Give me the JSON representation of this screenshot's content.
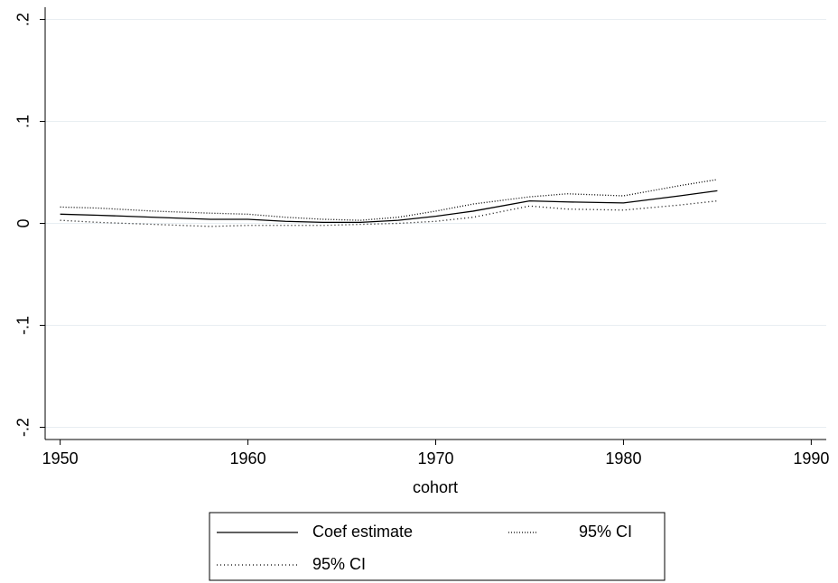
{
  "chart_data": {
    "type": "line",
    "x_label": "cohort",
    "x": [
      1950,
      1952,
      1955,
      1958,
      1960,
      1962,
      1964,
      1966,
      1968,
      1970,
      1972,
      1975,
      1977,
      1980,
      1983,
      1985
    ],
    "series": [
      {
        "name": "Coef estimate",
        "color": "#000000",
        "dash": "none",
        "values": [
          0.009,
          0.008,
          0.006,
          0.004,
          0.004,
          0.002,
          0.001,
          0.001,
          0.003,
          0.007,
          0.012,
          0.022,
          0.021,
          0.02,
          0.027,
          0.032
        ]
      },
      {
        "name": "95% CI",
        "color": "#000000",
        "dash": "1,2",
        "values": [
          0.016,
          0.015,
          0.012,
          0.01,
          0.009,
          0.006,
          0.004,
          0.003,
          0.006,
          0.012,
          0.019,
          0.026,
          0.029,
          0.027,
          0.037,
          0.043
        ]
      },
      {
        "name": "95% CI",
        "color": "#000000",
        "dash": "1,3",
        "values": [
          0.003,
          0.001,
          -0.001,
          -0.003,
          -0.002,
          -0.002,
          -0.002,
          -0.001,
          0.0,
          0.002,
          0.006,
          0.017,
          0.014,
          0.013,
          0.018,
          0.022
        ]
      }
    ],
    "xlim": [
      1949.2,
      1990.8
    ],
    "xticks": [
      1950,
      1960,
      1970,
      1980,
      1990
    ],
    "ylim": [
      -0.212,
      0.212
    ],
    "yticks": [
      {
        "value": -0.2,
        "label": "-.2"
      },
      {
        "value": -0.1,
        "label": "-.1"
      },
      0,
      {
        "value": 0.1,
        "label": ".1"
      },
      {
        "value": 0.2,
        "label": ".2"
      }
    ],
    "grid": true,
    "legend": "bottom"
  }
}
